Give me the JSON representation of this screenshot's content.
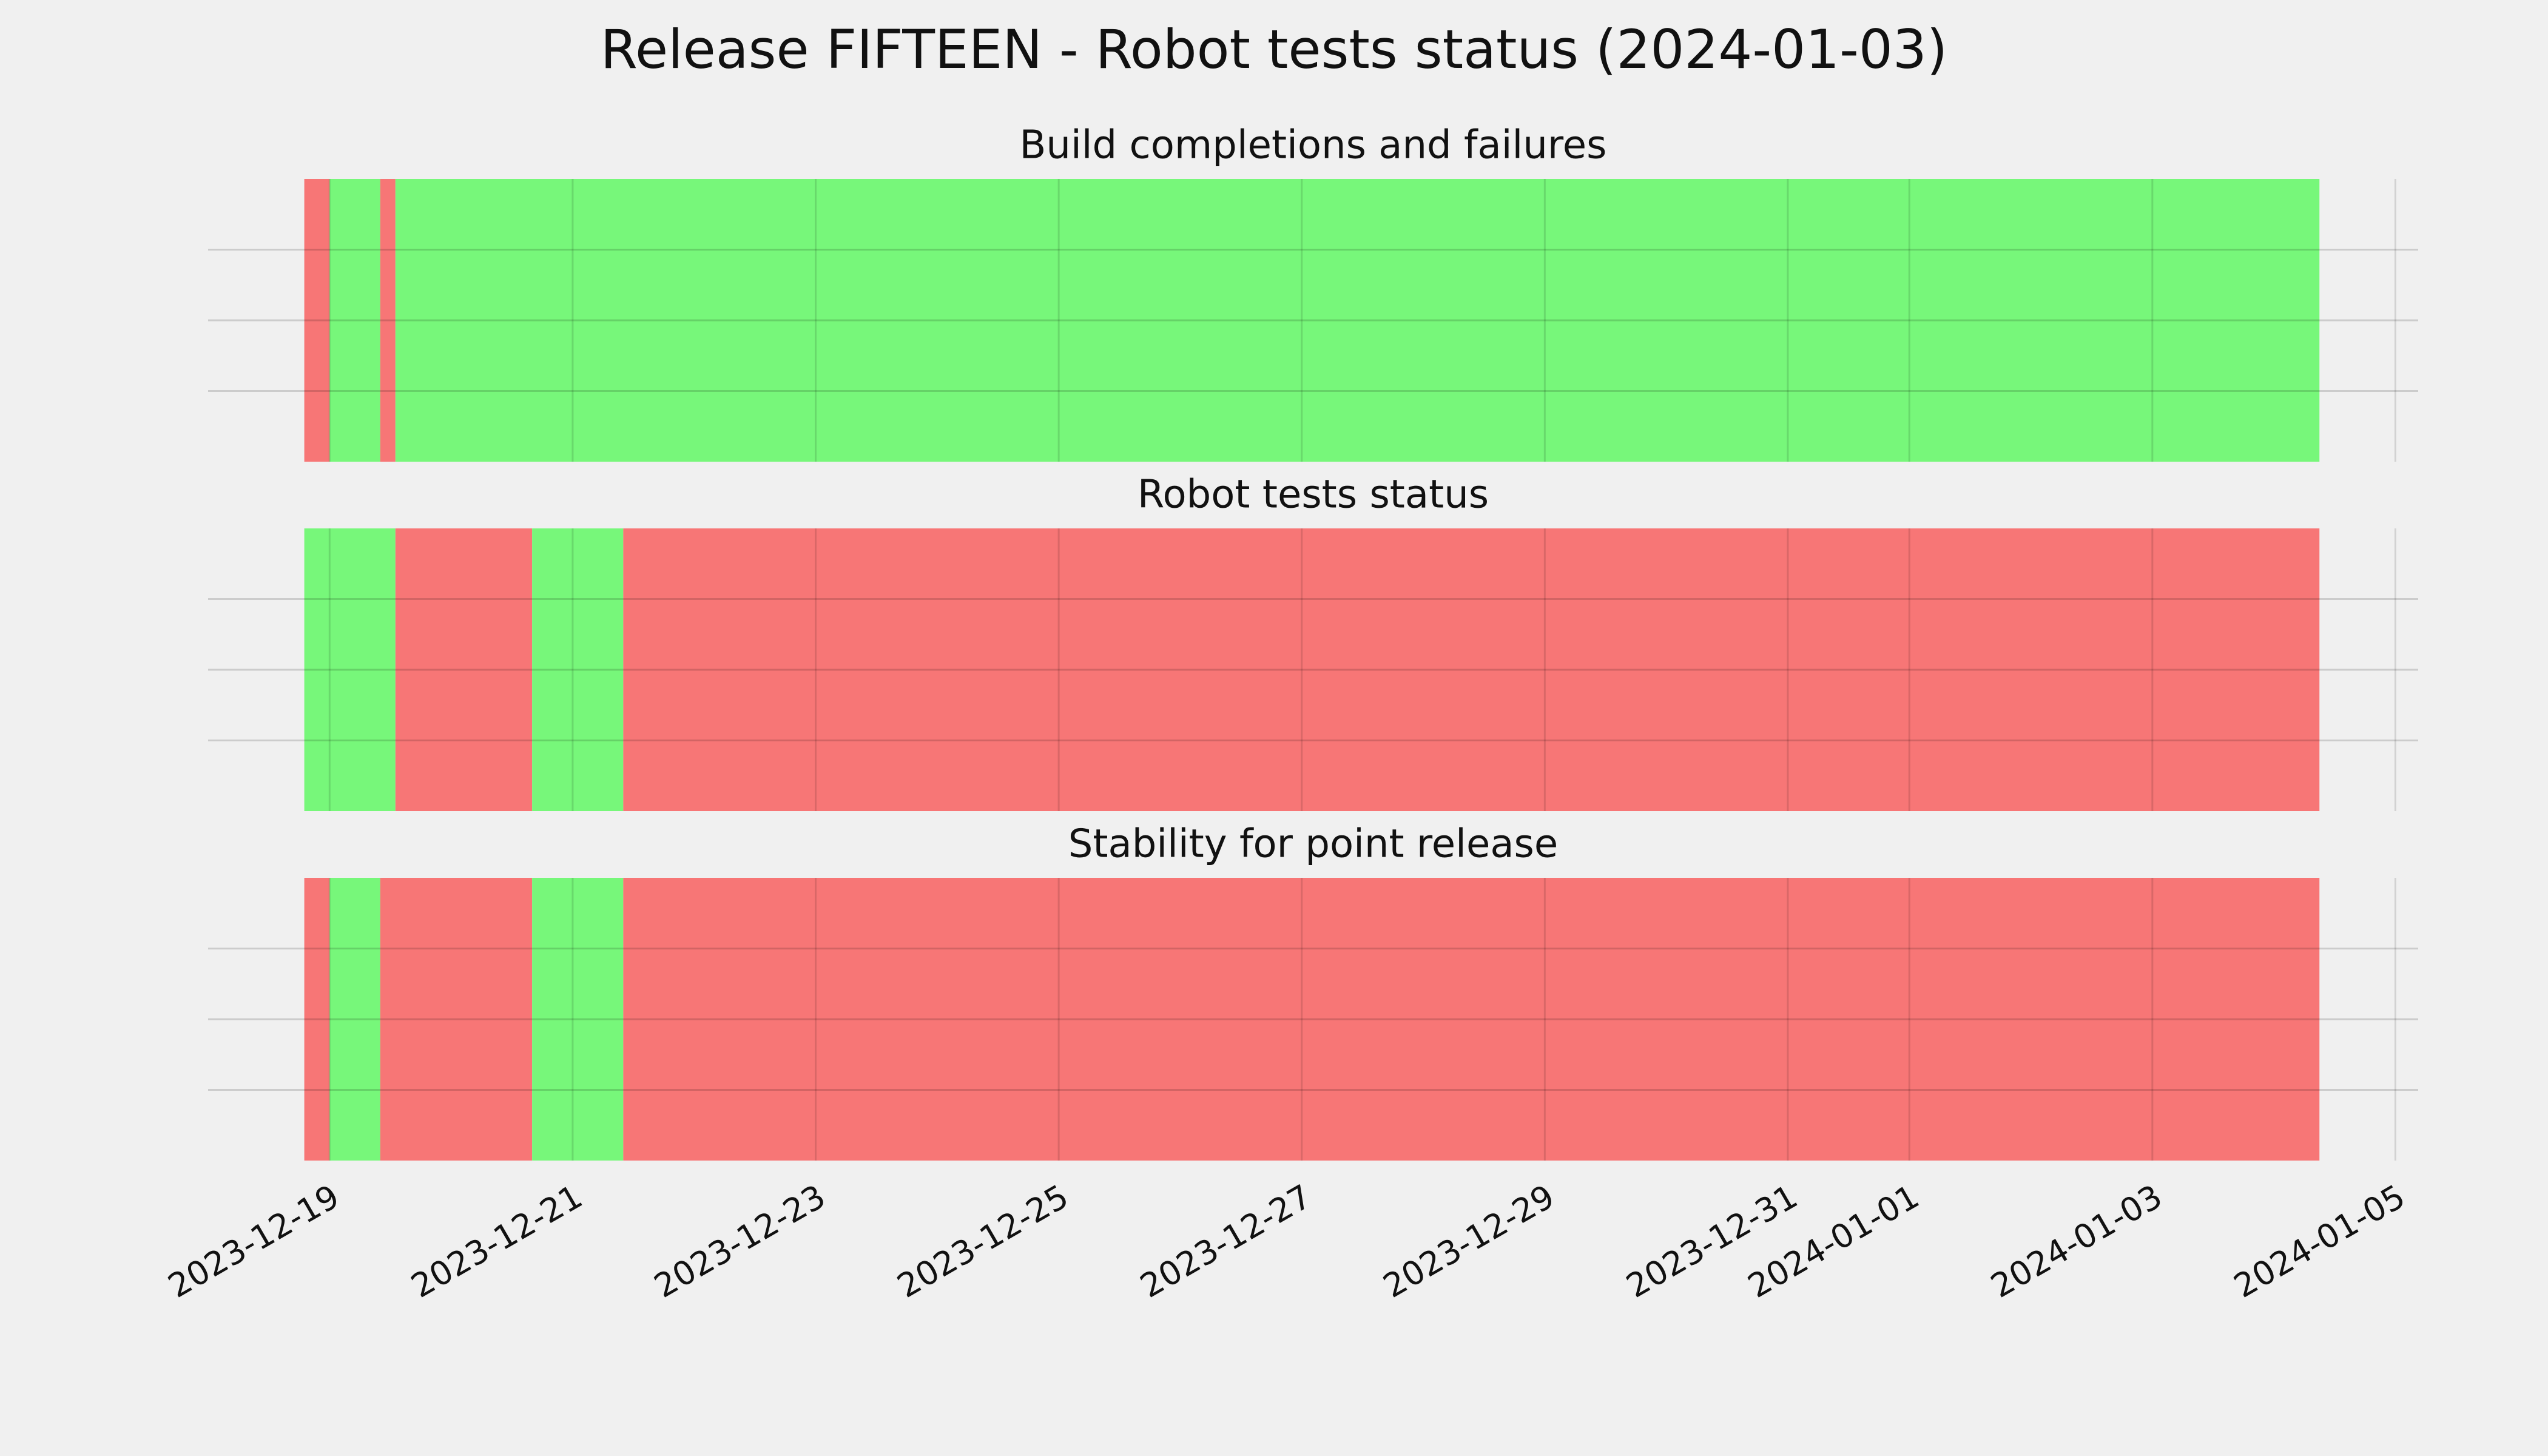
{
  "figure_title": "Release FIFTEEN - Robot tests status (2024-01-03)",
  "chart_data": [
    {
      "type": "timeline",
      "title": "Build completions and failures",
      "x": [
        "2023-12-18T19:00",
        "2023-12-19T00:00",
        "2023-12-19T10:00",
        "2023-12-19T13:00",
        "2024-01-04T09:00"
      ],
      "colors": [
        "#f77676",
        "#77f77a",
        "#f77676",
        "#77f77a"
      ],
      "xlim": [
        "2023-12-18T00:00",
        "2024-01-05T04:30"
      ],
      "xticks": [
        "2023-12-19",
        "2023-12-21",
        "2023-12-23",
        "2023-12-25",
        "2023-12-27",
        "2023-12-29",
        "2023-12-31",
        "2024-01-01",
        "2024-01-03",
        "2024-01-05"
      ],
      "ylim": [
        0,
        1
      ],
      "yticks": [
        0.25,
        0.5,
        0.75
      ],
      "grid": true
    },
    {
      "type": "timeline",
      "title": "Robot tests status",
      "x": [
        "2023-12-18T19:00",
        "2023-12-19T13:00",
        "2023-12-20T16:00",
        "2023-12-21T10:00",
        "2024-01-04T09:00"
      ],
      "colors": [
        "#77f77a",
        "#f77676",
        "#77f77a",
        "#f77676"
      ],
      "xlim": [
        "2023-12-18T00:00",
        "2024-01-05T04:30"
      ],
      "xticks": [
        "2023-12-19",
        "2023-12-21",
        "2023-12-23",
        "2023-12-25",
        "2023-12-27",
        "2023-12-29",
        "2023-12-31",
        "2024-01-01",
        "2024-01-03",
        "2024-01-05"
      ],
      "ylim": [
        0,
        1
      ],
      "yticks": [
        0.25,
        0.5,
        0.75
      ],
      "grid": true
    },
    {
      "type": "timeline",
      "title": "Stability for point release",
      "x": [
        "2023-12-18T19:00",
        "2023-12-19T00:00",
        "2023-12-19T10:00",
        "2023-12-20T16:00",
        "2023-12-21T10:00",
        "2024-01-04T09:00"
      ],
      "colors": [
        "#f77676",
        "#77f77a",
        "#f77676",
        "#77f77a",
        "#f77676"
      ],
      "xlim": [
        "2023-12-18T00:00",
        "2024-01-05T04:30"
      ],
      "xticks": [
        "2023-12-19",
        "2023-12-21",
        "2023-12-23",
        "2023-12-25",
        "2023-12-27",
        "2023-12-29",
        "2023-12-31",
        "2024-01-01",
        "2024-01-03",
        "2024-01-05"
      ],
      "ylim": [
        0,
        1
      ],
      "yticks": [
        0.25,
        0.5,
        0.75
      ],
      "grid": true,
      "show_xtick_labels": true
    }
  ]
}
